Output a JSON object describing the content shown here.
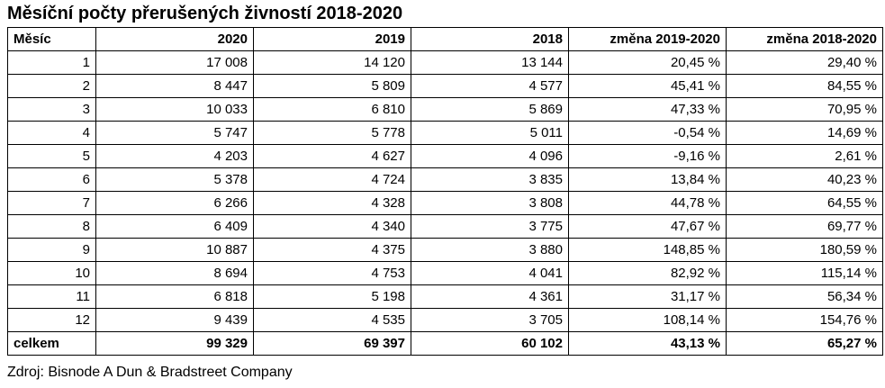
{
  "title": "Měsíční počty přerušených živností 2018-2020",
  "source": "Zdroj: Bisnode A Dun & Bradstreet Company",
  "chart_data": {
    "type": "table",
    "title": "Měsíční počty přerušených živností 2018-2020",
    "columns": [
      "Měsíc",
      "2020",
      "2019",
      "2018",
      "změna 2019-2020",
      "změna 2018-2020"
    ],
    "rows": [
      [
        "1",
        "17 008",
        "14 120",
        "13 144",
        "20,45 %",
        "29,40 %"
      ],
      [
        "2",
        "8 447",
        "5 809",
        "4 577",
        "45,41 %",
        "84,55 %"
      ],
      [
        "3",
        "10 033",
        "6 810",
        "5 869",
        "47,33 %",
        "70,95 %"
      ],
      [
        "4",
        "5 747",
        "5 778",
        "5 011",
        "-0,54 %",
        "14,69 %"
      ],
      [
        "5",
        "4 203",
        "4 627",
        "4 096",
        "-9,16 %",
        "2,61 %"
      ],
      [
        "6",
        "5 378",
        "4 724",
        "3 835",
        "13,84 %",
        "40,23 %"
      ],
      [
        "7",
        "6 266",
        "4 328",
        "3 808",
        "44,78 %",
        "64,55 %"
      ],
      [
        "8",
        "6 409",
        "4 340",
        "3 775",
        "47,67 %",
        "69,77 %"
      ],
      [
        "9",
        "10 887",
        "4 375",
        "3 880",
        "148,85 %",
        "180,59 %"
      ],
      [
        "10",
        "8 694",
        "4 753",
        "4 041",
        "82,92 %",
        "115,14 %"
      ],
      [
        "11",
        "6 818",
        "5 198",
        "4 361",
        "31,17 %",
        "56,34 %"
      ],
      [
        "12",
        "9 439",
        "4 535",
        "3 705",
        "108,14 %",
        "154,76 %"
      ]
    ],
    "total": [
      "celkem",
      "99 329",
      "69 397",
      "60 102",
      "43,13 %",
      "65,27 %"
    ]
  }
}
